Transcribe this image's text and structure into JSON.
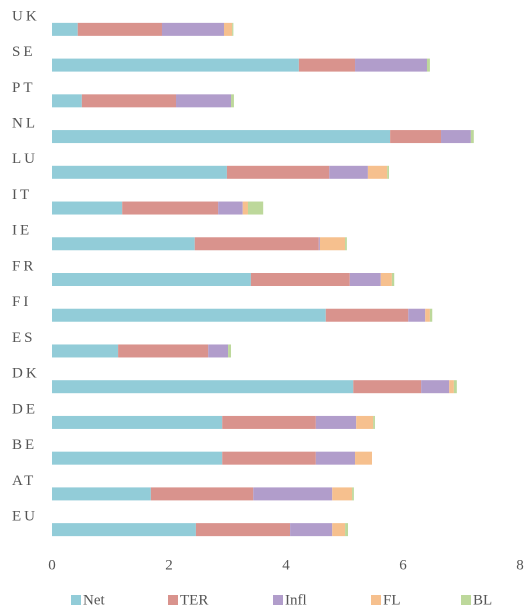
{
  "chart_data": {
    "type": "stacked_barh",
    "categories": [
      "UK",
      "SE",
      "PT",
      "NL",
      "LU",
      "IT",
      "IE",
      "FR",
      "FI",
      "ES",
      "DK",
      "DE",
      "BE",
      "AT",
      "EU"
    ],
    "series": [
      {
        "name": "Net",
        "color": "#92ccd8",
        "values": [
          0.44,
          4.22,
          0.51,
          5.78,
          2.99,
          1.2,
          2.44,
          3.4,
          4.68,
          1.13,
          5.15,
          2.91,
          2.91,
          1.69,
          2.46
        ]
      },
      {
        "name": "TER",
        "color": "#d9938d",
        "values": [
          1.44,
          0.96,
          1.61,
          0.87,
          1.75,
          1.64,
          2.12,
          1.69,
          1.41,
          1.54,
          1.16,
          1.6,
          1.6,
          1.75,
          1.61
        ]
      },
      {
        "name": "Infl",
        "color": "#b19dcb",
        "values": [
          1.06,
          1.23,
          0.94,
          0.51,
          0.66,
          0.42,
          0.02,
          0.53,
          0.29,
          0.34,
          0.48,
          0.69,
          0.67,
          1.35,
          0.72
        ]
      },
      {
        "name": "FL",
        "color": "#f6c08e",
        "values": [
          0.14,
          0,
          0,
          0,
          0.33,
          0.09,
          0.43,
          0.19,
          0.08,
          0,
          0.08,
          0.29,
          0.29,
          0.34,
          0.22
        ]
      },
      {
        "name": "BL",
        "color": "#bdd89b",
        "values": [
          0.02,
          0.05,
          0.05,
          0.05,
          0.03,
          0.26,
          0.03,
          0.04,
          0.04,
          0.05,
          0.05,
          0.03,
          0,
          0.03,
          0.05
        ]
      }
    ],
    "xlim": [
      0,
      8
    ],
    "xticks": [
      0,
      2,
      4,
      6,
      8
    ],
    "legend": "bottom"
  }
}
